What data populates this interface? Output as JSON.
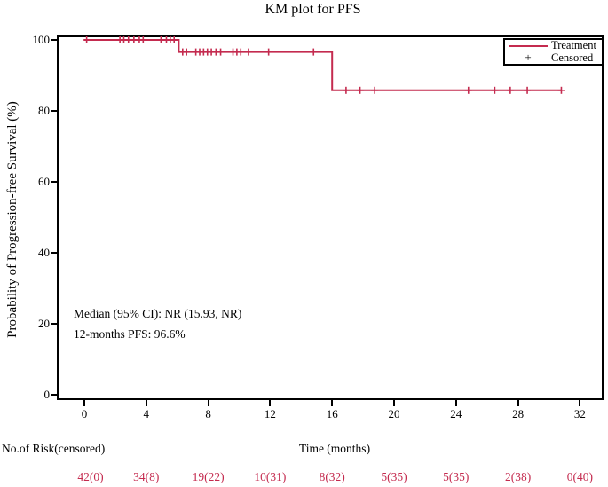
{
  "page": {
    "title": "KM plot for PFS"
  },
  "chart_data": {
    "type": "line",
    "subtype": "kaplan-meier-step",
    "title": "KM plot for PFS",
    "xlabel": "Time (months)",
    "ylabel": "Probability of Progression-free Survival (%)",
    "xlim": [
      0,
      32
    ],
    "ylim": [
      0,
      100
    ],
    "x_ticks": [
      0,
      4,
      8,
      12,
      16,
      20,
      24,
      28,
      32
    ],
    "y_ticks": [
      0,
      20,
      40,
      60,
      80,
      100
    ],
    "grid": false,
    "legend_position": "top-right",
    "frame": true,
    "series": [
      {
        "name": "Treatment",
        "color": "#C42B4F",
        "km_points": [
          [
            0,
            100
          ],
          [
            6.1,
            100
          ],
          [
            6.1,
            96.6
          ],
          [
            16.0,
            96.6
          ],
          [
            16.0,
            85.8
          ],
          [
            30.8,
            85.8
          ]
        ],
        "censor_marks": [
          [
            0.15,
            100
          ],
          [
            2.3,
            100
          ],
          [
            2.55,
            100
          ],
          [
            2.85,
            100
          ],
          [
            3.2,
            100
          ],
          [
            3.55,
            100
          ],
          [
            3.8,
            100
          ],
          [
            4.95,
            100
          ],
          [
            5.3,
            100
          ],
          [
            5.55,
            100
          ],
          [
            5.8,
            100
          ],
          [
            6.35,
            96.6
          ],
          [
            6.6,
            96.6
          ],
          [
            7.2,
            96.6
          ],
          [
            7.45,
            96.6
          ],
          [
            7.7,
            96.6
          ],
          [
            7.95,
            96.6
          ],
          [
            8.2,
            96.6
          ],
          [
            8.5,
            96.6
          ],
          [
            8.8,
            96.6
          ],
          [
            9.6,
            96.6
          ],
          [
            9.85,
            96.6
          ],
          [
            10.1,
            96.6
          ],
          [
            10.6,
            96.6
          ],
          [
            11.9,
            96.6
          ],
          [
            14.8,
            96.6
          ],
          [
            16.9,
            85.8
          ],
          [
            17.8,
            85.8
          ],
          [
            18.75,
            85.8
          ],
          [
            24.8,
            85.8
          ],
          [
            26.5,
            85.8
          ],
          [
            27.5,
            85.8
          ],
          [
            28.6,
            85.8
          ],
          [
            30.8,
            85.8
          ]
        ]
      }
    ],
    "annotations": [
      {
        "text": "Median (95% CI): NR (15.93, NR)"
      },
      {
        "text": "12-months PFS: 96.6%"
      }
    ],
    "legend": [
      {
        "label": "Treatment",
        "symbol": "line"
      },
      {
        "label": "Censored",
        "symbol": "plus",
        "symbol_char": "+"
      }
    ],
    "risk_table": {
      "label": "No.of Risk(censored)",
      "times": [
        0,
        4,
        8,
        12,
        16,
        20,
        24,
        28,
        32
      ],
      "values": [
        "42(0)",
        "34(8)",
        "19(22)",
        "10(31)",
        "8(32)",
        "5(35)",
        "5(35)",
        "2(38)",
        "0(40)"
      ],
      "color": "#C42B4F"
    }
  }
}
